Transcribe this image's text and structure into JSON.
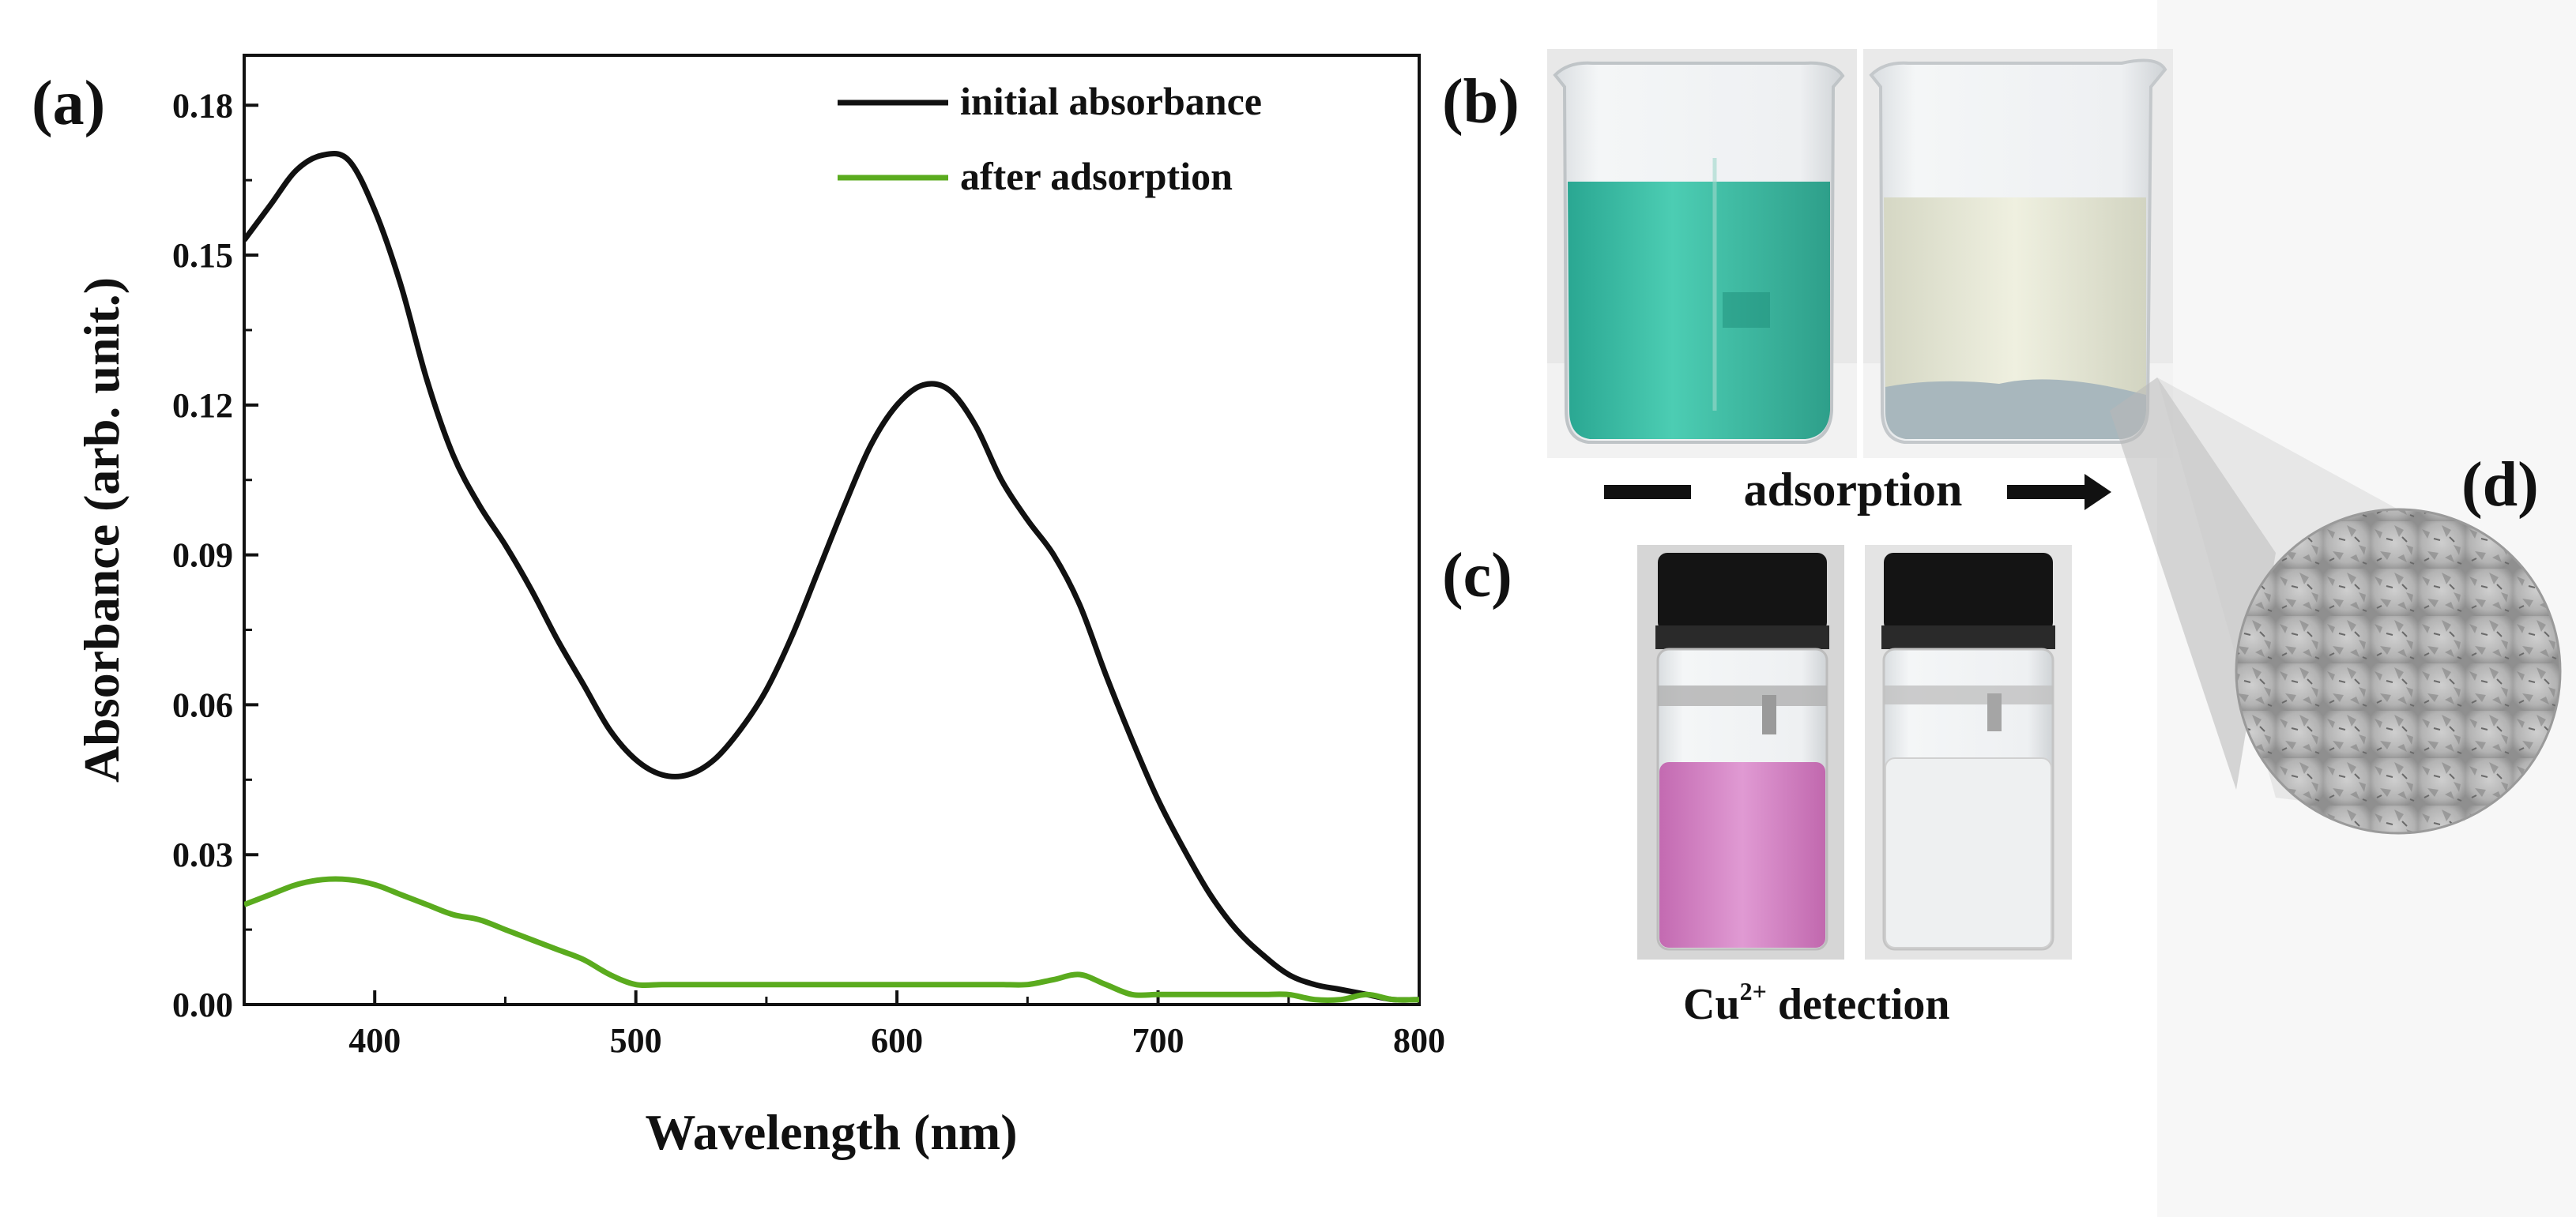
{
  "chart_data": {
    "type": "line",
    "panel_label": "(a)",
    "xlabel": "Wavelength (nm)",
    "ylabel": "Absorbance (arb. unit.)",
    "xlim": [
      350,
      800
    ],
    "ylim": [
      0,
      0.19
    ],
    "x_ticks": [
      400,
      500,
      600,
      700,
      800
    ],
    "x_tick_labels": [
      "400",
      "500",
      "600",
      "700",
      "800"
    ],
    "y_ticks": [
      0,
      0.03,
      0.06,
      0.09,
      0.12,
      0.15,
      0.18
    ],
    "y_tick_labels": [
      "0.00",
      "0.03",
      "0.06",
      "0.09",
      "0.12",
      "0.15",
      "0.18"
    ],
    "legend_position": "top-right",
    "series": [
      {
        "name": "initial absorbance",
        "color": "#111111",
        "x": [
          350,
          360,
          370,
          380,
          390,
          400,
          410,
          420,
          430,
          440,
          450,
          460,
          470,
          480,
          490,
          500,
          510,
          520,
          530,
          540,
          550,
          560,
          570,
          580,
          590,
          600,
          610,
          620,
          630,
          640,
          650,
          660,
          670,
          680,
          690,
          700,
          710,
          720,
          730,
          740,
          750,
          760,
          770,
          780,
          790,
          800
        ],
        "y": [
          0.153,
          0.16,
          0.167,
          0.17,
          0.169,
          0.159,
          0.144,
          0.125,
          0.11,
          0.1,
          0.092,
          0.083,
          0.073,
          0.064,
          0.055,
          0.049,
          0.046,
          0.046,
          0.049,
          0.055,
          0.063,
          0.074,
          0.087,
          0.1,
          0.112,
          0.12,
          0.124,
          0.123,
          0.116,
          0.105,
          0.097,
          0.09,
          0.08,
          0.066,
          0.053,
          0.041,
          0.031,
          0.022,
          0.015,
          0.01,
          0.006,
          0.004,
          0.003,
          0.002,
          0.001,
          0.001
        ]
      },
      {
        "name": "after adsorption",
        "color": "#5aab1e",
        "x": [
          350,
          360,
          370,
          380,
          390,
          400,
          410,
          420,
          430,
          440,
          450,
          460,
          470,
          480,
          490,
          500,
          510,
          520,
          530,
          540,
          550,
          560,
          570,
          580,
          590,
          600,
          610,
          620,
          630,
          640,
          650,
          660,
          670,
          680,
          690,
          700,
          710,
          720,
          730,
          740,
          750,
          760,
          770,
          780,
          790,
          800
        ],
        "y": [
          0.02,
          0.022,
          0.024,
          0.025,
          0.025,
          0.024,
          0.022,
          0.02,
          0.018,
          0.017,
          0.015,
          0.013,
          0.011,
          0.009,
          0.006,
          0.004,
          0.004,
          0.004,
          0.004,
          0.004,
          0.004,
          0.004,
          0.004,
          0.004,
          0.004,
          0.004,
          0.004,
          0.004,
          0.004,
          0.004,
          0.004,
          0.005,
          0.006,
          0.004,
          0.002,
          0.002,
          0.002,
          0.002,
          0.002,
          0.002,
          0.002,
          0.001,
          0.001,
          0.002,
          0.001,
          0.001
        ]
      }
    ]
  },
  "photos": {
    "panel_b_label": "(b)",
    "panel_c_label": "(c)",
    "panel_d_label": "(d)",
    "adsorption_label": "adsorption",
    "cu_detection_prefix": "Cu",
    "cu_detection_superscript": "2+",
    "cu_detection_suffix": " detection",
    "colors": {
      "teal_solution": "#3fbfa6",
      "pale_solution": "#e6e7d6",
      "pink_solution": "#d887c8",
      "clear_solution": "#eef0f1",
      "powder": "#bdbdbd"
    }
  }
}
